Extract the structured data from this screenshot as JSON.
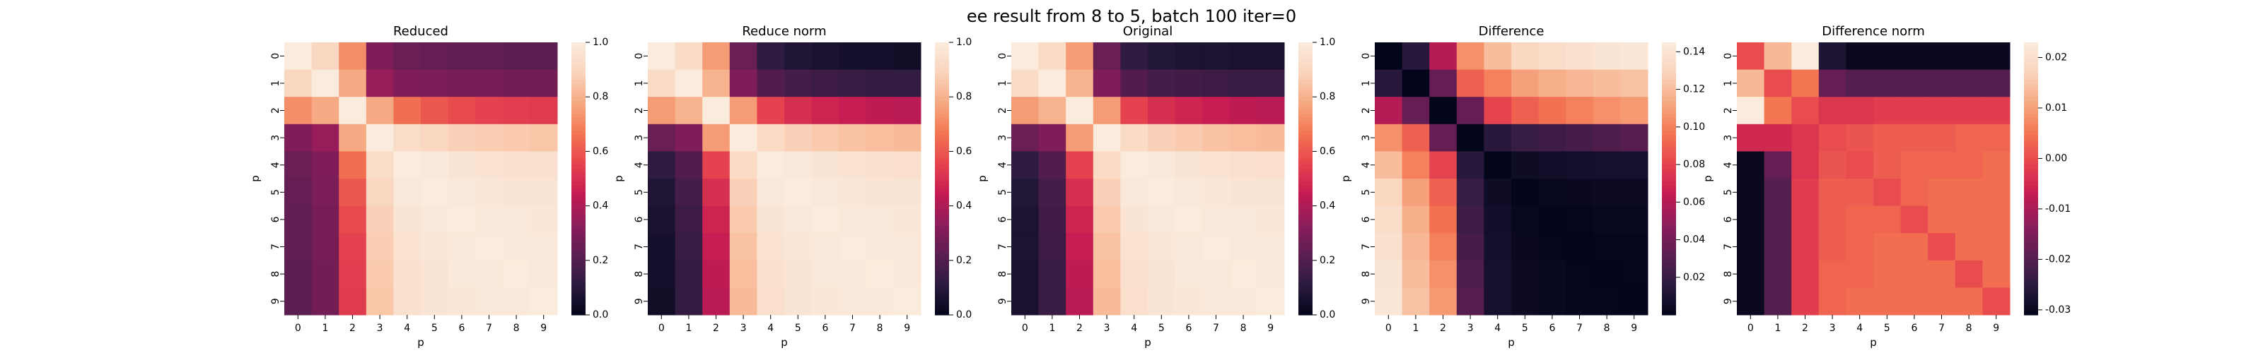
{
  "suptitle": "ee result from 8 to 5, batch 100 iter=0",
  "colormap": {
    "name": "rocket",
    "stops": [
      "#03051a",
      "#2b1b3f",
      "#5c1e51",
      "#8e1d5b",
      "#c51b52",
      "#e6444e",
      "#f37651",
      "#f6a982",
      "#fad5bd",
      "#faebdd"
    ]
  },
  "chart_data": [
    {
      "type": "heatmap",
      "title": "Reduced",
      "xlabel": "p",
      "ylabel": "p",
      "x_ticks": [
        "0",
        "1",
        "2",
        "3",
        "4",
        "5",
        "6",
        "7",
        "8",
        "9"
      ],
      "y_ticks": [
        "0",
        "1",
        "2",
        "3",
        "4",
        "5",
        "6",
        "7",
        "8",
        "9"
      ],
      "vmin": 0.0,
      "vmax": 1.0,
      "colorbar_ticks": [
        "0.0",
        "0.2",
        "0.4",
        "0.6",
        "0.8",
        "1.0"
      ],
      "values": [
        [
          1.0,
          0.9,
          0.72,
          0.3,
          0.25,
          0.24,
          0.23,
          0.23,
          0.22,
          0.22
        ],
        [
          0.9,
          1.0,
          0.78,
          0.35,
          0.3,
          0.29,
          0.28,
          0.28,
          0.27,
          0.27
        ],
        [
          0.72,
          0.78,
          1.0,
          0.78,
          0.65,
          0.6,
          0.57,
          0.55,
          0.54,
          0.53
        ],
        [
          0.3,
          0.35,
          0.78,
          1.0,
          0.93,
          0.9,
          0.88,
          0.87,
          0.86,
          0.85
        ],
        [
          0.25,
          0.3,
          0.65,
          0.93,
          1.0,
          0.99,
          0.97,
          0.96,
          0.95,
          0.95
        ],
        [
          0.24,
          0.29,
          0.6,
          0.9,
          0.99,
          1.0,
          0.99,
          0.98,
          0.97,
          0.97
        ],
        [
          0.23,
          0.28,
          0.57,
          0.88,
          0.97,
          0.99,
          1.0,
          0.99,
          0.99,
          0.98
        ],
        [
          0.23,
          0.28,
          0.55,
          0.87,
          0.96,
          0.98,
          0.99,
          1.0,
          0.99,
          0.99
        ],
        [
          0.22,
          0.27,
          0.54,
          0.86,
          0.95,
          0.97,
          0.99,
          0.99,
          1.0,
          0.99
        ],
        [
          0.22,
          0.27,
          0.53,
          0.85,
          0.95,
          0.97,
          0.98,
          0.99,
          0.99,
          1.0
        ]
      ]
    },
    {
      "type": "heatmap",
      "title": "Reduce norm",
      "xlabel": "p",
      "ylabel": "p",
      "x_ticks": [
        "0",
        "1",
        "2",
        "3",
        "4",
        "5",
        "6",
        "7",
        "8",
        "9"
      ],
      "y_ticks": [
        "0",
        "1",
        "2",
        "3",
        "4",
        "5",
        "6",
        "7",
        "8",
        "9"
      ],
      "vmin": 0.0,
      "vmax": 1.0,
      "colorbar_ticks": [
        "0.0",
        "0.2",
        "0.4",
        "0.6",
        "0.8",
        "1.0"
      ],
      "values": [
        [
          1.0,
          0.92,
          0.75,
          0.25,
          0.12,
          0.08,
          0.06,
          0.05,
          0.05,
          0.04
        ],
        [
          0.92,
          1.0,
          0.8,
          0.3,
          0.2,
          0.17,
          0.15,
          0.14,
          0.13,
          0.13
        ],
        [
          0.75,
          0.8,
          1.0,
          0.75,
          0.55,
          0.5,
          0.47,
          0.45,
          0.43,
          0.42
        ],
        [
          0.25,
          0.3,
          0.75,
          1.0,
          0.92,
          0.88,
          0.86,
          0.84,
          0.83,
          0.82
        ],
        [
          0.12,
          0.2,
          0.55,
          0.92,
          1.0,
          0.99,
          0.97,
          0.96,
          0.95,
          0.94
        ],
        [
          0.08,
          0.17,
          0.5,
          0.88,
          0.99,
          1.0,
          0.99,
          0.98,
          0.97,
          0.97
        ],
        [
          0.06,
          0.15,
          0.47,
          0.86,
          0.97,
          0.99,
          1.0,
          0.99,
          0.99,
          0.98
        ],
        [
          0.05,
          0.14,
          0.45,
          0.84,
          0.96,
          0.98,
          0.99,
          1.0,
          0.99,
          0.99
        ],
        [
          0.05,
          0.13,
          0.43,
          0.83,
          0.95,
          0.97,
          0.99,
          0.99,
          1.0,
          0.99
        ],
        [
          0.04,
          0.13,
          0.42,
          0.82,
          0.94,
          0.97,
          0.98,
          0.99,
          0.99,
          1.0
        ]
      ]
    },
    {
      "type": "heatmap",
      "title": "Original",
      "xlabel": "p",
      "ylabel": "p",
      "x_ticks": [
        "0",
        "1",
        "2",
        "3",
        "4",
        "5",
        "6",
        "7",
        "8",
        "9"
      ],
      "y_ticks": [
        "0",
        "1",
        "2",
        "3",
        "4",
        "5",
        "6",
        "7",
        "8",
        "9"
      ],
      "vmin": 0.0,
      "vmax": 1.0,
      "colorbar_ticks": [
        "0.0",
        "0.2",
        "0.4",
        "0.6",
        "0.8",
        "1.0"
      ],
      "values": [
        [
          1.0,
          0.92,
          0.75,
          0.25,
          0.12,
          0.09,
          0.07,
          0.07,
          0.06,
          0.06
        ],
        [
          0.92,
          1.0,
          0.8,
          0.3,
          0.2,
          0.17,
          0.16,
          0.15,
          0.14,
          0.14
        ],
        [
          0.75,
          0.8,
          1.0,
          0.75,
          0.55,
          0.5,
          0.47,
          0.45,
          0.43,
          0.42
        ],
        [
          0.25,
          0.3,
          0.75,
          1.0,
          0.92,
          0.88,
          0.86,
          0.84,
          0.83,
          0.82
        ],
        [
          0.12,
          0.2,
          0.55,
          0.92,
          1.0,
          0.99,
          0.97,
          0.96,
          0.95,
          0.94
        ],
        [
          0.09,
          0.17,
          0.5,
          0.88,
          0.99,
          1.0,
          0.99,
          0.98,
          0.97,
          0.97
        ],
        [
          0.07,
          0.16,
          0.47,
          0.86,
          0.97,
          0.99,
          1.0,
          0.99,
          0.99,
          0.98
        ],
        [
          0.07,
          0.15,
          0.45,
          0.84,
          0.96,
          0.98,
          0.99,
          1.0,
          0.99,
          0.99
        ],
        [
          0.06,
          0.14,
          0.43,
          0.83,
          0.95,
          0.97,
          0.99,
          0.99,
          1.0,
          0.99
        ],
        [
          0.06,
          0.14,
          0.42,
          0.82,
          0.94,
          0.97,
          0.98,
          0.99,
          0.99,
          1.0
        ]
      ]
    },
    {
      "type": "heatmap",
      "title": "Difference",
      "xlabel": "p",
      "ylabel": "p",
      "x_ticks": [
        "0",
        "1",
        "2",
        "3",
        "4",
        "5",
        "6",
        "7",
        "8",
        "9"
      ],
      "y_ticks": [
        "0",
        "1",
        "2",
        "3",
        "4",
        "5",
        "6",
        "7",
        "8",
        "9"
      ],
      "vmin": 0.0,
      "vmax": 0.145,
      "colorbar_ticks": [
        "0.02",
        "0.04",
        "0.06",
        "0.08",
        "0.10",
        "0.12",
        "0.14"
      ],
      "values": [
        [
          0.0,
          0.015,
          0.06,
          0.105,
          0.12,
          0.13,
          0.135,
          0.138,
          0.14,
          0.142
        ],
        [
          0.015,
          0.0,
          0.035,
          0.09,
          0.1,
          0.11,
          0.115,
          0.118,
          0.12,
          0.122
        ],
        [
          0.06,
          0.035,
          0.0,
          0.035,
          0.08,
          0.09,
          0.095,
          0.1,
          0.105,
          0.108
        ],
        [
          0.105,
          0.09,
          0.035,
          0.0,
          0.015,
          0.02,
          0.022,
          0.025,
          0.028,
          0.03
        ],
        [
          0.12,
          0.1,
          0.08,
          0.015,
          0.0,
          0.005,
          0.006,
          0.007,
          0.008,
          0.008
        ],
        [
          0.13,
          0.11,
          0.09,
          0.02,
          0.005,
          0.0,
          0.002,
          0.003,
          0.004,
          0.004
        ],
        [
          0.135,
          0.115,
          0.095,
          0.022,
          0.006,
          0.002,
          0.0,
          0.001,
          0.002,
          0.002
        ],
        [
          0.138,
          0.118,
          0.1,
          0.025,
          0.007,
          0.003,
          0.001,
          0.0,
          0.001,
          0.001
        ],
        [
          0.14,
          0.12,
          0.105,
          0.028,
          0.008,
          0.004,
          0.002,
          0.001,
          0.0,
          0.001
        ],
        [
          0.142,
          0.122,
          0.108,
          0.03,
          0.008,
          0.004,
          0.002,
          0.001,
          0.001,
          0.0
        ]
      ]
    },
    {
      "type": "heatmap",
      "title": "Difference norm",
      "xlabel": "p",
      "ylabel": "p",
      "x_ticks": [
        "0",
        "1",
        "2",
        "3",
        "4",
        "5",
        "6",
        "7",
        "8",
        "9"
      ],
      "y_ticks": [
        "0",
        "1",
        "2",
        "3",
        "4",
        "5",
        "6",
        "7",
        "8",
        "9"
      ],
      "vmin": -0.031,
      "vmax": 0.023,
      "colorbar_ticks": [
        "-0.03",
        "-0.02",
        "-0.01",
        "0.00",
        "0.01",
        "0.02"
      ],
      "values": [
        [
          0.0,
          0.013,
          0.023,
          -0.027,
          -0.03,
          -0.03,
          -0.03,
          -0.03,
          -0.03,
          -0.03
        ],
        [
          0.013,
          0.0,
          0.005,
          -0.018,
          -0.02,
          -0.02,
          -0.02,
          -0.02,
          -0.02,
          -0.02
        ],
        [
          0.023,
          0.005,
          0.0,
          -0.003,
          -0.003,
          -0.002,
          -0.002,
          -0.002,
          -0.002,
          -0.002
        ],
        [
          -0.005,
          -0.005,
          -0.003,
          0.0,
          0.001,
          0.002,
          0.002,
          0.002,
          0.003,
          0.003
        ],
        [
          -0.03,
          -0.018,
          -0.003,
          0.001,
          0.0,
          0.002,
          0.003,
          0.003,
          0.003,
          0.004
        ],
        [
          -0.03,
          -0.02,
          -0.002,
          0.002,
          0.002,
          0.0,
          0.003,
          0.004,
          0.004,
          0.004
        ],
        [
          -0.03,
          -0.02,
          -0.002,
          0.002,
          0.003,
          0.003,
          0.0,
          0.004,
          0.004,
          0.004
        ],
        [
          -0.03,
          -0.02,
          -0.002,
          0.002,
          0.003,
          0.004,
          0.004,
          0.0,
          0.004,
          0.004
        ],
        [
          -0.03,
          -0.02,
          -0.002,
          0.003,
          0.003,
          0.004,
          0.004,
          0.004,
          0.0,
          0.004
        ],
        [
          -0.03,
          -0.02,
          -0.002,
          0.003,
          0.004,
          0.004,
          0.004,
          0.004,
          0.004,
          0.0
        ]
      ]
    }
  ]
}
